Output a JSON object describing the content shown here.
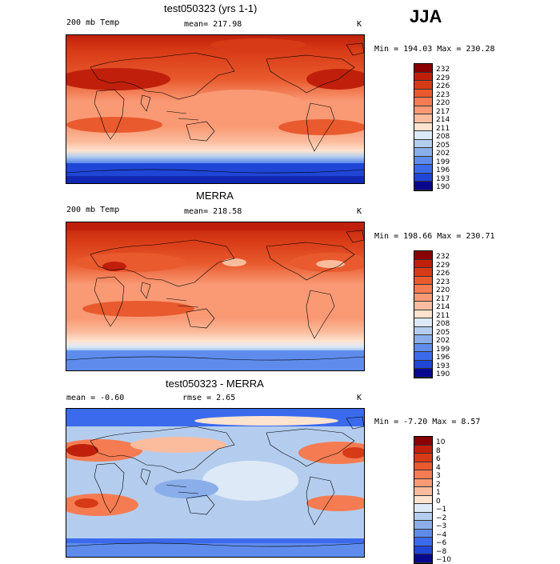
{
  "season": "JJA",
  "panels": [
    {
      "title": "test050323 (yrs 1-1)",
      "left_label": "200 mb Temp",
      "mid_label": "mean= 217.98",
      "unit": "K",
      "minmax": "Min = 194.03 Max = 230.28",
      "type": "abs",
      "colorbar": {
        "labels": [
          "232",
          "229",
          "226",
          "223",
          "220",
          "217",
          "214",
          "211",
          "208",
          "205",
          "202",
          "199",
          "196",
          "193",
          "190"
        ],
        "colors": [
          "#8b0000",
          "#c0200b",
          "#d73a16",
          "#e95a2e",
          "#f57c52",
          "#f99a75",
          "#fbbc9d",
          "#fee3cf",
          "#dde9f6",
          "#b4cdee",
          "#8aaeea",
          "#5f8cec",
          "#3b6bec",
          "#1f46d6",
          "#08088f"
        ]
      }
    },
    {
      "title": "MERRA",
      "left_label": "200 mb Temp",
      "mid_label": "mean= 218.58",
      "unit": "K",
      "minmax": "Min = 198.66 Max = 230.71",
      "type": "abs",
      "colorbar": {
        "labels": [
          "232",
          "229",
          "226",
          "223",
          "220",
          "217",
          "214",
          "211",
          "208",
          "205",
          "202",
          "199",
          "196",
          "193",
          "190"
        ],
        "colors": [
          "#8b0000",
          "#c0200b",
          "#d73a16",
          "#e95a2e",
          "#f57c52",
          "#f99a75",
          "#fbbc9d",
          "#fee3cf",
          "#dde9f6",
          "#b4cdee",
          "#8aaeea",
          "#5f8cec",
          "#3b6bec",
          "#1f46d6",
          "#08088f"
        ]
      }
    },
    {
      "title": "test050323 - MERRA",
      "left_label": "mean =  -0.60",
      "mid_label": "rmse =   2.65",
      "unit": "K",
      "minmax": "Min =  -7.20 Max =   8.57",
      "type": "diff",
      "colorbar": {
        "labels": [
          "10",
          "8",
          "6",
          "4",
          "3",
          "2",
          "1",
          "0",
          "−1",
          "−2",
          "−3",
          "−4",
          "−6",
          "−8",
          "−10"
        ],
        "colors": [
          "#8b0000",
          "#c0200b",
          "#d73a16",
          "#e95a2e",
          "#f57c52",
          "#f99a75",
          "#fbbc9d",
          "#fee3cf",
          "#dde9f6",
          "#b4cdee",
          "#8aaeea",
          "#5f8cec",
          "#3b6bec",
          "#1f46d6",
          "#08088f"
        ]
      }
    }
  ]
}
